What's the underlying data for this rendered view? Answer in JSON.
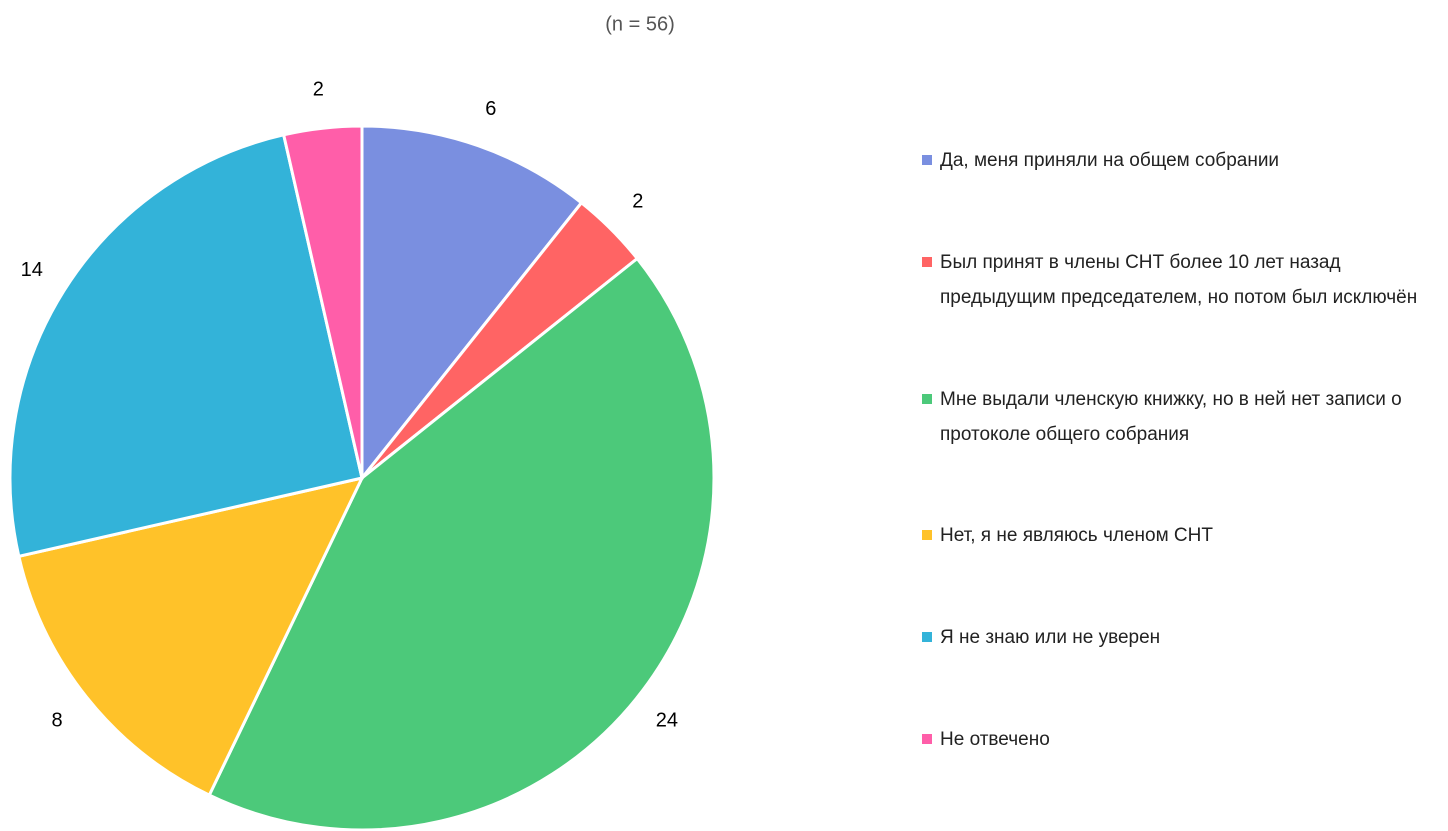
{
  "chart_data": {
    "type": "pie",
    "subtitle": "(n = 56)",
    "categories": [
      "Да, меня приняли на общем собрании",
      "Был принят в члены СНТ более 10 лет назад предыдущим председателем, но потом был исключён",
      "Мне выдали членскую книжку, но в ней нет записи о протоколе общего собрания",
      "Нет, я не являюсь членом СНТ",
      "Я не знаю или не уверен",
      "Не отвечено"
    ],
    "values": [
      6,
      2,
      24,
      8,
      14,
      2
    ],
    "colors": [
      "#7a8fe0",
      "#ff6464",
      "#4cc97a",
      "#ffc229",
      "#33b3d9",
      "#ff5ea9"
    ],
    "legend": "right"
  }
}
